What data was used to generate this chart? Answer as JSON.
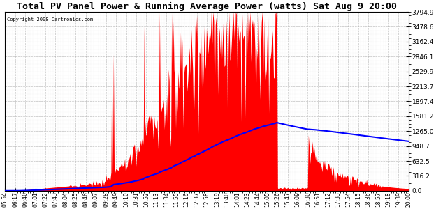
{
  "title": "Total PV Panel Power & Running Average Power (watts) Sat Aug 9 20:00",
  "copyright_text": "Copyright 2008 Cartronics.com",
  "y_max": 3794.9,
  "y_min": 0.0,
  "y_ticks": [
    0.0,
    316.2,
    632.5,
    948.7,
    1265.0,
    1581.2,
    1897.4,
    2213.7,
    2529.9,
    2846.1,
    3162.4,
    3478.6,
    3794.9
  ],
  "bar_color": "#FF0000",
  "avg_color": "#0000FF",
  "background_color": "#FFFFFF",
  "grid_color": "#AAAAAA",
  "title_fontsize": 11,
  "x_labels": [
    "05:54",
    "06:17",
    "06:40",
    "07:01",
    "07:22",
    "07:43",
    "08:04",
    "08:25",
    "08:46",
    "09:07",
    "09:28",
    "09:49",
    "10:10",
    "10:31",
    "10:52",
    "11:13",
    "11:34",
    "11:55",
    "12:16",
    "12:37",
    "12:58",
    "13:19",
    "13:40",
    "14:01",
    "14:23",
    "14:44",
    "15:05",
    "15:26",
    "15:47",
    "16:09",
    "16:30",
    "16:51",
    "17:12",
    "17:33",
    "17:54",
    "18:15",
    "18:36",
    "18:57",
    "19:18",
    "19:39",
    "20:00"
  ]
}
